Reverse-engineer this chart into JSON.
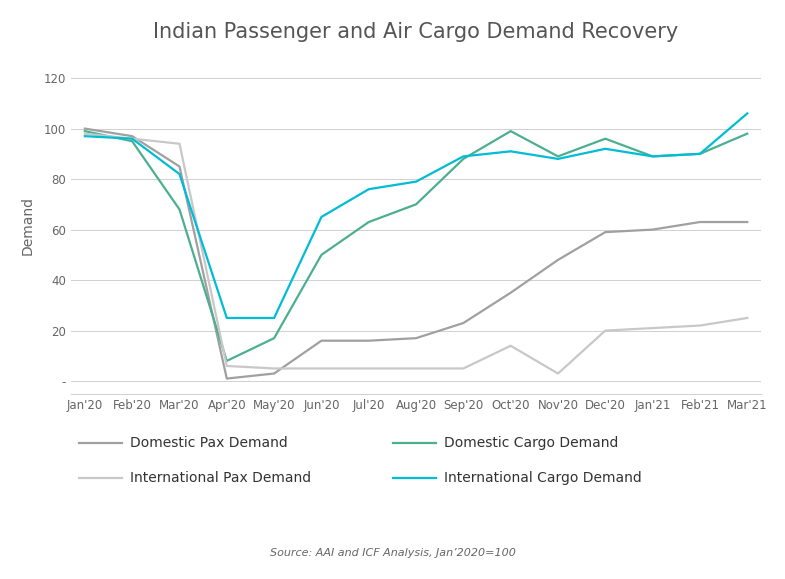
{
  "title": "Indian Passenger and Air Cargo Demand Recovery",
  "ylabel": "Demand",
  "source": "Source: AAI and ICF Analysis, Jan’2020=100",
  "ylim": [
    -5,
    128
  ],
  "yticks": [
    0,
    20,
    40,
    60,
    80,
    100,
    120
  ],
  "ytick_labels": [
    "-",
    "20",
    "40",
    "60",
    "80",
    "100",
    "120"
  ],
  "months": [
    "Jan'20",
    "Feb'20",
    "Mar'20",
    "Apr'20",
    "May'20",
    "Jun'20",
    "Jul'20",
    "Aug'20",
    "Sep'20",
    "Oct'20",
    "Nov'20",
    "Dec'20",
    "Jan'21",
    "Feb'21",
    "Mar'21"
  ],
  "domestic_pax": [
    100,
    97,
    85,
    1,
    3,
    16,
    16,
    17,
    23,
    35,
    48,
    59,
    60,
    63,
    63
  ],
  "domestic_cargo": [
    99,
    95,
    68,
    8,
    17,
    50,
    63,
    70,
    88,
    99,
    89,
    96,
    89,
    90,
    98
  ],
  "intl_pax": [
    98,
    96,
    94,
    6,
    5,
    5,
    5,
    5,
    5,
    14,
    3,
    20,
    21,
    22,
    25
  ],
  "intl_cargo": [
    97,
    96,
    82,
    25,
    25,
    65,
    76,
    79,
    89,
    91,
    88,
    92,
    89,
    90,
    106
  ],
  "color_dom_pax": "#A0A0A0",
  "color_dom_cargo": "#4CAF90",
  "color_intl_pax": "#C8C8C8",
  "color_intl_cargo": "#00BCD4",
  "linewidth": 1.6,
  "background_color": "#FFFFFF",
  "grid_color": "#D0D0D0",
  "title_fontsize": 15,
  "title_color": "#555555",
  "axis_label_color": "#666666",
  "tick_label_color": "#666666",
  "legend_fontsize": 10,
  "source_fontsize": 8
}
